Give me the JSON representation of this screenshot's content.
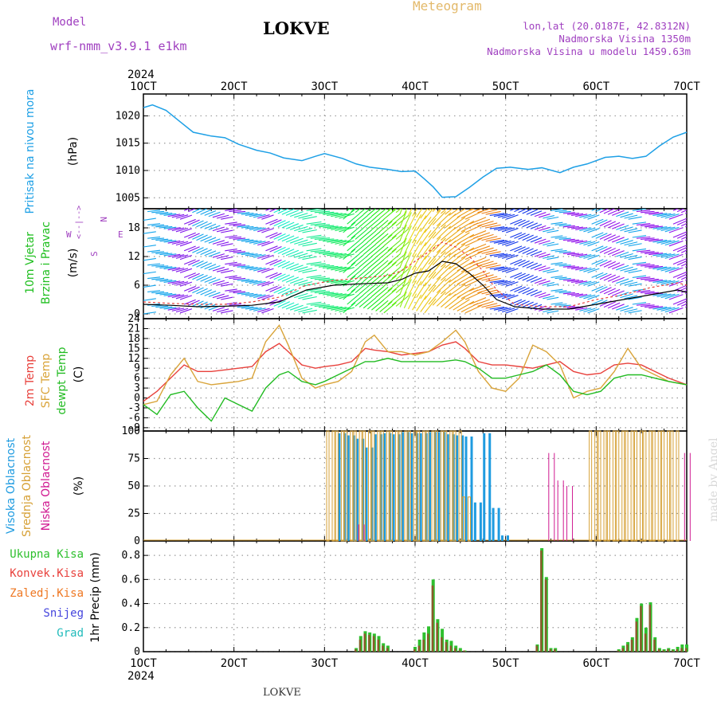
{
  "header": {
    "model_label": "Model",
    "model_name": "wrf-nmm_v3.9.1 e1km",
    "title": "LOKVE",
    "meteogram_label": "Meteogram",
    "coords": "lon,lat (20.0187E, 42.8312N)",
    "altitude": "Nadmorska Visina 1350m",
    "model_altitude": "Nadmorska Visina u modelu 1459.63m",
    "footer_title": "LOKVE",
    "credit": "made by Angel"
  },
  "colors": {
    "pressure": "#1ea0e6",
    "wind_label": "#1fbf1f",
    "temp2m": "#e8413c",
    "sfc_temp": "#d9a43a",
    "dewpt": "#22bb22",
    "high_cloud": "#1e9be0",
    "mid_cloud": "#d6a035",
    "low_cloud": "#d01890",
    "total_precip": "#2ec02e",
    "conv_precip": "#e8413c",
    "frozen_precip": "#ee7722",
    "snow": "#4444dd",
    "grad": "#22bbbb",
    "compass": "#a040c0"
  },
  "x_axis": {
    "year": "2024",
    "ticks": [
      "1OCT",
      "2OCT",
      "3OCT",
      "4OCT",
      "5OCT",
      "6OCT",
      "7OCT"
    ],
    "range_days": [
      1,
      7
    ]
  },
  "chart_data": [
    {
      "type": "line",
      "name": "pressure",
      "ylabel_color_text": "Pritisak na nivou mora",
      "ylabel": "(hPa)",
      "yticks": [
        1005,
        1010,
        1015,
        1020
      ],
      "ylim": [
        1003,
        1024
      ],
      "x": [
        1.0,
        1.1,
        1.25,
        1.4,
        1.55,
        1.75,
        1.9,
        2.05,
        2.25,
        2.4,
        2.55,
        2.75,
        2.9,
        3.0,
        3.2,
        3.35,
        3.5,
        3.7,
        3.85,
        4.0,
        4.1,
        4.2,
        4.3,
        4.45,
        4.6,
        4.75,
        4.9,
        5.05,
        5.25,
        5.4,
        5.6,
        5.75,
        5.9,
        6.1,
        6.25,
        6.4,
        6.55,
        6.7,
        6.85,
        7.0
      ],
      "values": [
        1021.5,
        1022,
        1021,
        1019,
        1017,
        1016.3,
        1016,
        1014.8,
        1013.7,
        1013.2,
        1012.3,
        1011.8,
        1012.6,
        1013.1,
        1012.2,
        1011.2,
        1010.6,
        1010.2,
        1009.8,
        1009.9,
        1008.5,
        1007,
        1005.1,
        1005.2,
        1006.9,
        1008.8,
        1010.4,
        1010.6,
        1010.2,
        1010.5,
        1009.6,
        1010.6,
        1011.2,
        1012.4,
        1012.6,
        1012.2,
        1012.6,
        1014.5,
        1016.1,
        1017
      ]
    },
    {
      "type": "scatter",
      "name": "wind",
      "ylabel_color_text_1": "10m Vjetar",
      "ylabel_color_text_2": "Brzina i Pravac",
      "ylabel": "(m/s)",
      "compass_top": "N",
      "compass_left": "W",
      "compass_right": "E",
      "compass_bottom": "S",
      "compass_arrow": "<--|-->",
      "yticks": [
        0,
        6,
        12,
        18
      ],
      "ylim": [
        -1,
        22
      ],
      "x": [
        1.0,
        1.3,
        1.6,
        1.9,
        2.2,
        2.5,
        2.8,
        3.1,
        3.4,
        3.7,
        3.85,
        4.0,
        4.15,
        4.3,
        4.45,
        4.6,
        4.75,
        4.9,
        5.1,
        5.4,
        5.7,
        6.0,
        6.3,
        6.6,
        6.9,
        7.0
      ],
      "speed": [
        2,
        1.8,
        1.5,
        1.6,
        1.8,
        2.5,
        5,
        6,
        6.3,
        6.5,
        7.2,
        8.5,
        9,
        11,
        10.5,
        8.5,
        6,
        3,
        1.5,
        1,
        1,
        2,
        3,
        4,
        5,
        4.5
      ],
      "gust": [
        2.5,
        2.2,
        2,
        2,
        2.5,
        3.5,
        6,
        7,
        7.5,
        8,
        9,
        11,
        13,
        15,
        14,
        12,
        9,
        5,
        2,
        1.5,
        1.5,
        3,
        4,
        5.5,
        6.5,
        6
      ]
    },
    {
      "type": "line",
      "name": "temperature",
      "ylabel_color_text_1": "2m Temp",
      "ylabel_color_text_2": "SFC Temp",
      "ylabel_color_text_3": "dewpt Temp",
      "ylabel": "(C)",
      "yticks": [
        -9,
        -6,
        -3,
        0,
        3,
        6,
        9,
        12,
        15,
        18,
        21,
        24
      ],
      "ylim": [
        -10,
        24
      ],
      "x": [
        1.0,
        1.15,
        1.3,
        1.45,
        1.6,
        1.75,
        1.9,
        2.05,
        2.2,
        2.35,
        2.5,
        2.6,
        2.75,
        2.9,
        3.0,
        3.15,
        3.3,
        3.45,
        3.55,
        3.7,
        3.85,
        4.0,
        4.15,
        4.3,
        4.45,
        4.55,
        4.7,
        4.85,
        5.0,
        5.15,
        5.3,
        5.45,
        5.6,
        5.75,
        5.9,
        6.05,
        6.2,
        6.35,
        6.5,
        6.65,
        6.8,
        7.0
      ],
      "series": [
        {
          "name": "2m Temp",
          "values": [
            -1,
            2,
            6,
            10,
            8,
            8,
            8.5,
            9,
            9.5,
            14,
            16.5,
            14,
            10,
            9,
            9.5,
            10,
            11,
            15,
            14.5,
            14,
            13,
            13.5,
            14,
            16,
            17,
            15,
            11,
            10,
            10,
            9.5,
            9,
            10,
            11,
            8,
            7,
            7.5,
            10,
            10.5,
            10,
            8,
            6,
            4
          ]
        },
        {
          "name": "SFC Temp",
          "values": [
            -2,
            -1,
            7,
            12,
            5,
            4,
            4.5,
            5,
            6,
            17,
            22,
            16,
            6,
            3,
            4,
            5,
            8,
            17,
            19,
            14,
            14,
            13,
            14,
            17,
            20.5,
            17,
            8,
            3,
            2,
            6,
            16,
            14,
            10,
            0,
            2,
            3,
            8,
            15,
            9,
            7,
            5,
            4
          ]
        },
        {
          "name": "dewpt Temp",
          "values": [
            -2,
            -5,
            1,
            2,
            -3,
            -7,
            0,
            -2,
            -4,
            3,
            7,
            8,
            5,
            4,
            5,
            7,
            9,
            11,
            11,
            12,
            11,
            11,
            11,
            11,
            11.5,
            11,
            9,
            6,
            6,
            7,
            8,
            10,
            7,
            2,
            1,
            2,
            6,
            7,
            7,
            6,
            5,
            4
          ]
        }
      ]
    },
    {
      "type": "bar",
      "name": "cloudiness",
      "ylabel_color_text_1": "Visoka Oblacnost",
      "ylabel_color_text_2": "Srednja Oblacnost",
      "ylabel_color_text_3": "Niska Oblacnost",
      "ylabel": "(%)",
      "yticks": [
        0,
        25,
        50,
        75,
        100
      ],
      "ylim": [
        0,
        100
      ],
      "x": [
        3.05,
        3.15,
        3.25,
        3.35,
        3.45,
        3.55,
        3.65,
        3.75,
        3.85,
        3.95,
        4.05,
        4.15,
        4.25,
        4.35,
        4.45,
        4.55,
        4.65,
        4.75,
        4.85,
        4.95,
        5.05,
        5.15,
        5.25,
        5.35,
        5.45,
        5.55,
        5.65,
        5.75,
        5.85,
        5.95,
        6.05,
        6.15,
        6.25,
        6.35,
        6.45,
        6.55,
        6.65,
        6.75,
        6.85,
        6.95
      ],
      "series": [
        {
          "name": "high",
          "values": [
            0,
            98,
            96,
            93,
            85,
            97,
            98,
            97,
            99,
            98,
            98,
            99,
            99,
            97,
            96,
            95,
            35,
            98,
            30,
            5,
            0,
            0,
            0,
            0,
            0,
            0,
            0,
            0,
            0,
            0,
            0,
            0,
            0,
            0,
            0,
            0,
            0,
            0,
            0,
            0
          ]
        },
        {
          "name": "mid",
          "values": [
            100,
            100,
            100,
            100,
            100,
            100,
            100,
            100,
            100,
            100,
            100,
            100,
            100,
            100,
            100,
            40,
            0,
            0,
            0,
            0,
            0,
            0,
            0,
            0,
            0,
            0,
            0,
            0,
            0,
            100,
            100,
            100,
            100,
            100,
            100,
            100,
            100,
            100,
            100,
            0
          ]
        },
        {
          "name": "low",
          "values": [
            0,
            0,
            0,
            15,
            0,
            0,
            0,
            0,
            0,
            0,
            0,
            0,
            0,
            0,
            0,
            0,
            0,
            0,
            0,
            0,
            0,
            0,
            0,
            0,
            80,
            55,
            50,
            0,
            0,
            0,
            0,
            0,
            0,
            0,
            0,
            0,
            0,
            0,
            0,
            80
          ]
        }
      ]
    },
    {
      "type": "bar",
      "name": "precipitation",
      "ylabel_color_text_1": "Ukupna Kisa",
      "ylabel_color_text_2": "Konvek.Kisa",
      "ylabel_color_text_3": "Zaledj.Kisa",
      "ylabel_color_text_4": "Snijeg",
      "ylabel_color_text_5": "Grad",
      "ylabel": "1hr Precip (mm)",
      "yticks": [
        0,
        0.2,
        0.4,
        0.6,
        0.8
      ],
      "ylim": [
        0,
        0.92
      ],
      "x": [
        3.35,
        3.4,
        3.45,
        3.5,
        3.55,
        3.6,
        3.65,
        3.7,
        4.0,
        4.05,
        4.1,
        4.15,
        4.2,
        4.25,
        4.3,
        4.35,
        4.4,
        4.45,
        4.5,
        4.55,
        5.35,
        5.4,
        5.45,
        5.5,
        5.55,
        6.25,
        6.3,
        6.35,
        6.4,
        6.45,
        6.5,
        6.55,
        6.6,
        6.65,
        6.7,
        6.75,
        6.8,
        6.85,
        6.9,
        6.95,
        7.0
      ],
      "series": [
        {
          "name": "Ukupna Kisa",
          "values": [
            0.03,
            0.13,
            0.17,
            0.16,
            0.15,
            0.13,
            0.07,
            0.05,
            0.04,
            0.1,
            0.16,
            0.21,
            0.6,
            0.27,
            0.19,
            0.1,
            0.09,
            0.05,
            0.03,
            0.01,
            0.06,
            0.86,
            0.62,
            0.03,
            0.03,
            0.02,
            0.05,
            0.08,
            0.12,
            0.28,
            0.4,
            0.2,
            0.41,
            0.12,
            0.03,
            0.02,
            0.03,
            0.02,
            0.04,
            0.06,
            0.06
          ]
        },
        {
          "name": "Konvek.Kisa",
          "values": [
            0.02,
            0.1,
            0.15,
            0.14,
            0.13,
            0.1,
            0.05,
            0.03,
            0.02,
            0.05,
            0.1,
            0.15,
            0.55,
            0.24,
            0.12,
            0.08,
            0.05,
            0.03,
            0.01,
            0.01,
            0.05,
            0.84,
            0.6,
            0.02,
            0.02,
            0.01,
            0.03,
            0.06,
            0.1,
            0.25,
            0.38,
            0.15,
            0.39,
            0.1,
            0.02,
            0.01,
            0.02,
            0.01,
            0.02,
            0.03,
            0.03
          ]
        }
      ]
    }
  ]
}
